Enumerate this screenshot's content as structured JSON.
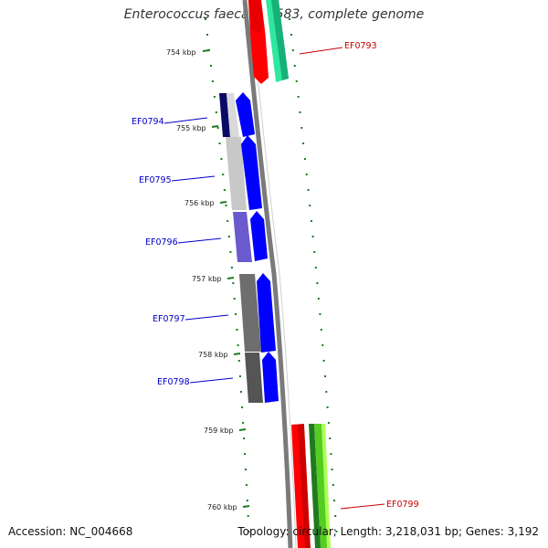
{
  "map": {
    "title": "Enterococcus faecalis V583, complete genome",
    "footer": {
      "accession": "Accession: NC_004668",
      "summary": "Topology: circular; Length: 3,218,031 bp; Genes: 3,192"
    },
    "colors": {
      "tick": "#1f7a1f",
      "backbone": "#8a8a8a",
      "label_blue": "#0000cc",
      "label_red": "#cc0000",
      "forward_blue": "#0000ff",
      "reverse_red": "#ff0000"
    },
    "kbp_ticks": [
      "754 kbp",
      "755 kbp",
      "756 kbp",
      "757 kbp",
      "758 kbp",
      "759 kbp",
      "760 kbp"
    ],
    "gene_labels": [
      {
        "name": "EF0793",
        "color": "#cc0000"
      },
      {
        "name": "EF0794",
        "color": "#0000cc"
      },
      {
        "name": "EF0795",
        "color": "#0000cc"
      },
      {
        "name": "EF0796",
        "color": "#0000cc"
      },
      {
        "name": "EF0797",
        "color": "#0000cc"
      },
      {
        "name": "EF0798",
        "color": "#0000cc"
      },
      {
        "name": "EF0799",
        "color": "#cc0000"
      }
    ]
  }
}
